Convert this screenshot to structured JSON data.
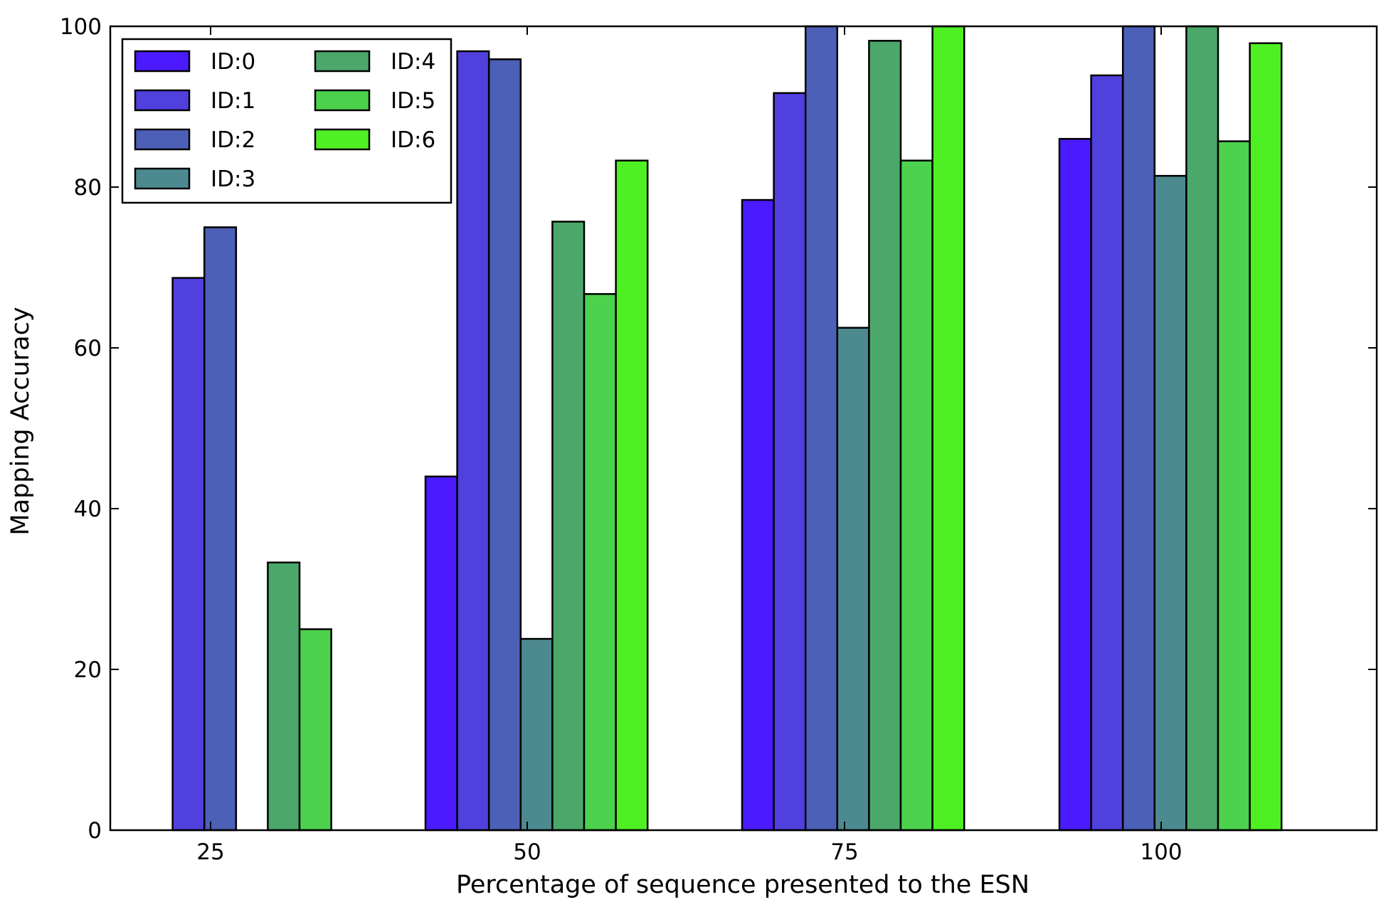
{
  "chart_data": {
    "type": "bar",
    "title": "",
    "xlabel": "Percentage of sequence presented to the ESN",
    "ylabel": "Mapping Accuracy",
    "categories": [
      "25",
      "50",
      "75",
      "100"
    ],
    "ylim": [
      0,
      100
    ],
    "yticks": [
      "0",
      "20",
      "40",
      "60",
      "80",
      "100"
    ],
    "legend_position": "top-left",
    "series": [
      {
        "name": "ID:0",
        "color": "#4b1aff",
        "values": [
          0,
          44,
          78.4,
          86
        ]
      },
      {
        "name": "ID:1",
        "color": "#5040de",
        "values": [
          68.7,
          96.9,
          91.7,
          93.9
        ]
      },
      {
        "name": "ID:2",
        "color": "#4c60b8",
        "values": [
          75,
          95.9,
          100,
          100
        ]
      },
      {
        "name": "ID:3",
        "color": "#4c8a90",
        "values": [
          0,
          23.8,
          62.5,
          81.4
        ]
      },
      {
        "name": "ID:4",
        "color": "#4ba86a",
        "values": [
          33.3,
          75.7,
          98.2,
          100
        ]
      },
      {
        "name": "ID:5",
        "color": "#4cd24c",
        "values": [
          25,
          66.7,
          83.3,
          85.7
        ]
      },
      {
        "name": "ID:6",
        "color": "#4ef024",
        "values": [
          0,
          83.3,
          100,
          97.9
        ]
      }
    ]
  }
}
